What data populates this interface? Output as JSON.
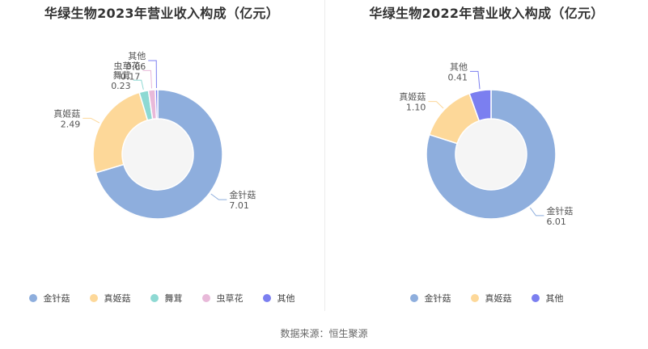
{
  "colors": {
    "金针菇": "#8eaedd",
    "真姬菇": "#fdd899",
    "舞茸": "#8ed9d3",
    "虫草花": "#e8b9d9",
    "其他": "#7b7ff0"
  },
  "source_text": "数据来源：恒生聚源",
  "chart_data": [
    {
      "type": "pie",
      "title": "华绿生物2023年营业收入构成（亿元）",
      "categories": [
        "金针菇",
        "真姬菇",
        "舞茸",
        "虫草花",
        "其他"
      ],
      "values": [
        7.01,
        2.49,
        0.23,
        0.17,
        0.06
      ],
      "value_labels": [
        "7.01",
        "2.49",
        "0.23",
        "0.17",
        "0.06"
      ],
      "legend_position": "bottom"
    },
    {
      "type": "pie",
      "title": "华绿生物2022年营业收入构成（亿元）",
      "categories": [
        "金针菇",
        "真姬菇",
        "其他"
      ],
      "values": [
        6.01,
        1.1,
        0.41
      ],
      "value_labels": [
        "6.01",
        "1.10",
        "0.41"
      ],
      "legend_position": "bottom"
    }
  ]
}
